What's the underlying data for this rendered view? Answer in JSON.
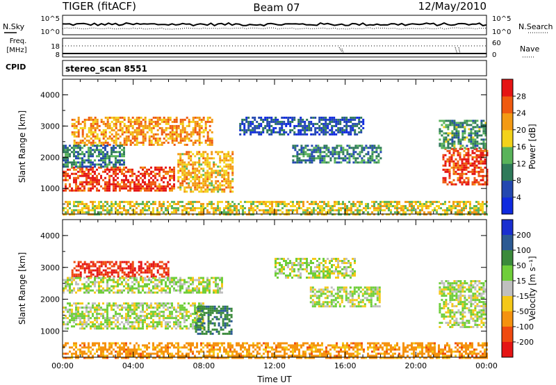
{
  "header": {
    "radar": "TIGER (fitACF)",
    "beam": "Beam 07",
    "date": "12/May/2010"
  },
  "top_panels": {
    "nsky_label": "N.Sky",
    "nsky_ticks": [
      "10^5",
      "10^0"
    ],
    "nsearch_label": "N.Search",
    "freq_label": "Freq.",
    "freq_unit": "[MHz]",
    "freq_ticks": [
      "18",
      "8"
    ],
    "nave_ticks": [
      "60",
      "0"
    ],
    "nave_label": "Nave",
    "cpid_label": "CPID",
    "cpid_value": "stereo_scan 8551"
  },
  "chart_data": [
    {
      "type": "heatmap",
      "panel": "power",
      "x": {
        "label": "Time UT",
        "range": [
          "00:00",
          "24:00"
        ],
        "ticks": [
          "00:00",
          "04:00",
          "08:00",
          "12:00",
          "16:00",
          "20:00",
          "00:00"
        ]
      },
      "y": {
        "label": "Slant Range [km]",
        "range": [
          180,
          4500
        ],
        "ticks": [
          1000,
          2000,
          3000,
          4000
        ]
      },
      "colorbar": {
        "label": "Power [dB]",
        "ticks": [
          4,
          8,
          12,
          16,
          20,
          24,
          28
        ],
        "colors": [
          "#0f2adf",
          "#2348b0",
          "#2f7a5a",
          "#59b35a",
          "#f3d21a",
          "#f39a14",
          "#ef5a10",
          "#e51414"
        ]
      },
      "regions": [
        {
          "t": [
            0.0,
            6.3
          ],
          "r": [
            900,
            1700
          ],
          "value": 28
        },
        {
          "t": [
            0.5,
            8.5
          ],
          "r": [
            2400,
            3300
          ],
          "value": 22
        },
        {
          "t": [
            0.0,
            3.5
          ],
          "r": [
            1700,
            2400
          ],
          "value": 10
        },
        {
          "t": [
            6.5,
            9.6
          ],
          "r": [
            900,
            2200
          ],
          "value": 20
        },
        {
          "t": [
            13.0,
            18.0
          ],
          "r": [
            1800,
            2400
          ],
          "value": 10
        },
        {
          "t": [
            10.0,
            17.0
          ],
          "r": [
            2700,
            3300
          ],
          "value": 6
        },
        {
          "t": [
            21.5,
            24.0
          ],
          "r": [
            1100,
            2300
          ],
          "value": 28
        },
        {
          "t": [
            21.3,
            24.0
          ],
          "r": [
            2300,
            3200
          ],
          "value": 12
        },
        {
          "t": [
            0.0,
            24.0
          ],
          "r": [
            180,
            600
          ],
          "value": 18
        }
      ]
    },
    {
      "type": "heatmap",
      "panel": "velocity",
      "x": {
        "label": "Time UT",
        "range": [
          "00:00",
          "24:00"
        ],
        "ticks": [
          "00:00",
          "04:00",
          "08:00",
          "12:00",
          "16:00",
          "20:00",
          "00:00"
        ]
      },
      "y": {
        "label": "Slant Range [km]",
        "range": [
          180,
          4500
        ],
        "ticks": [
          1000,
          2000,
          3000,
          4000
        ]
      },
      "colorbar": {
        "label": "Velocity [m s⁻¹]",
        "ticks": [
          200,
          100,
          50,
          15,
          -15,
          -50,
          -100,
          -200
        ],
        "colors": [
          "#1a2fd0",
          "#2c5a93",
          "#3b8a3b",
          "#6fce3a",
          "#bfbfbf",
          "#f5c818",
          "#f5920f",
          "#ef4a10",
          "#e51414"
        ]
      },
      "regions": [
        {
          "t": [
            0.0,
            8.0
          ],
          "r": [
            1100,
            1900
          ],
          "value": 0
        },
        {
          "t": [
            0.5,
            6.0
          ],
          "r": [
            2700,
            3200
          ],
          "value": -150
        },
        {
          "t": [
            0.0,
            9.0
          ],
          "r": [
            2200,
            2700
          ],
          "value": 0
        },
        {
          "t": [
            7.5,
            9.6
          ],
          "r": [
            900,
            1800
          ],
          "value": 60
        },
        {
          "t": [
            14.0,
            18.0
          ],
          "r": [
            1800,
            2400
          ],
          "value": 0
        },
        {
          "t": [
            12.0,
            16.5
          ],
          "r": [
            2700,
            3300
          ],
          "value": 0
        },
        {
          "t": [
            21.3,
            24.0
          ],
          "r": [
            1100,
            2600
          ],
          "value": 0
        },
        {
          "t": [
            0.0,
            24.0
          ],
          "r": [
            180,
            650
          ],
          "value": -50
        }
      ]
    }
  ]
}
